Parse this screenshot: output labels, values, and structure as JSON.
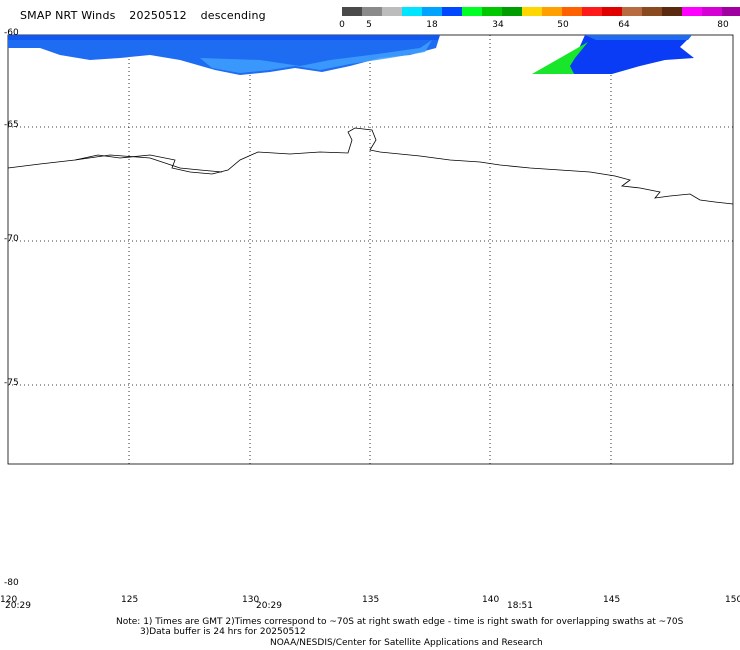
{
  "header": {
    "product": "SMAP NRT Winds",
    "date": "20250512",
    "pass": "descending"
  },
  "colorbar": {
    "ticks": [
      "0",
      "5",
      "18",
      "34",
      "50",
      "64",
      "80"
    ],
    "segments": [
      "#4a4a4a",
      "#8a8a8a",
      "#bcbcbc",
      "#00e5ff",
      "#00a4ff",
      "#0048ff",
      "#00ff22",
      "#00c800",
      "#009d00",
      "#ffd700",
      "#ffa000",
      "#ff6000",
      "#ff1a1a",
      "#e00000",
      "#b86a40",
      "#8a4a20",
      "#5a2a10",
      "#ff00ff",
      "#d400d4",
      "#a000a0"
    ]
  },
  "map": {
    "lat_labels": [
      "-60",
      "-65",
      "-70",
      "-75",
      "-80"
    ],
    "lon_labels": [
      "120",
      "125",
      "130",
      "135",
      "140",
      "145",
      "150"
    ],
    "pass_times": [
      "20:29",
      "20:29",
      "18:51"
    ]
  },
  "notes": {
    "line1": "Note: 1) Times are GMT 2)Times correspond to ~70S at right swath edge - time is right swath for overlapping swaths at ~70S",
    "line2": "3)Data buffer is 24 hrs for 20250512",
    "line3": "NOAA/NESDIS/Center for Satellite Applications and Research"
  }
}
